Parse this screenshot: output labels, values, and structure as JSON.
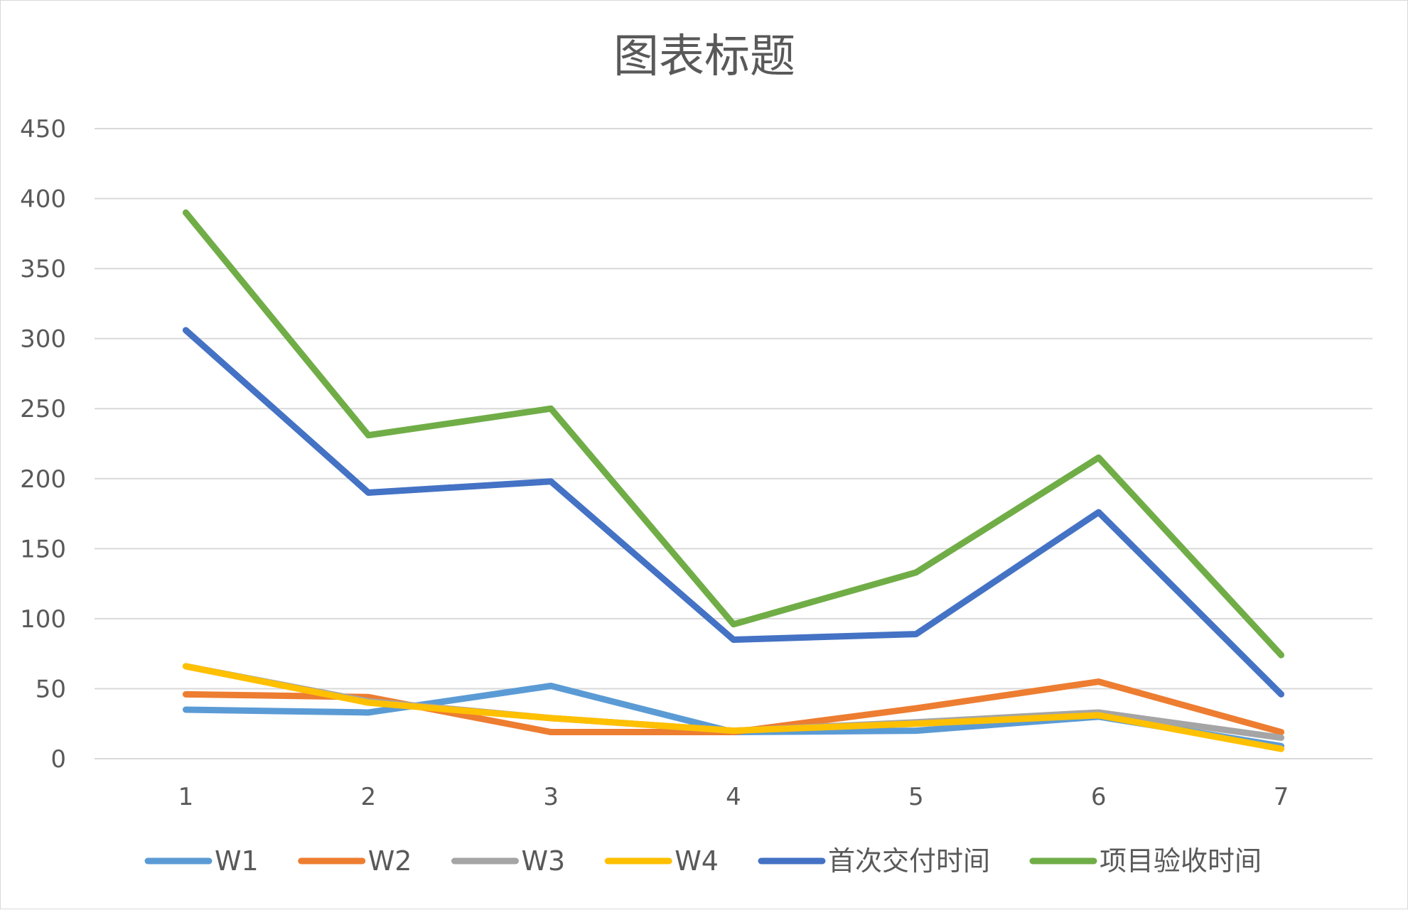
{
  "chart_data": {
    "type": "line",
    "title": "图表标题",
    "xlabel": "",
    "ylabel": "",
    "categories": [
      "1",
      "2",
      "3",
      "4",
      "5",
      "6",
      "7"
    ],
    "ylim": [
      0,
      450
    ],
    "yticks": [
      "0",
      "50",
      "100",
      "150",
      "200",
      "250",
      "300",
      "350",
      "400",
      "450"
    ],
    "grid": true,
    "legend_position": "bottom",
    "series": [
      {
        "name": "W1",
        "color": "#5B9BD5",
        "values": [
          35,
          33,
          52,
          19,
          20,
          30,
          9
        ]
      },
      {
        "name": "W2",
        "color": "#ED7D31",
        "values": [
          46,
          44,
          19,
          19,
          36,
          55,
          19
        ]
      },
      {
        "name": "W3",
        "color": "#A5A5A5",
        "values": [
          66,
          41,
          29,
          20,
          26,
          33,
          15
        ]
      },
      {
        "name": "W4",
        "color": "#FFC000",
        "values": [
          66,
          40,
          29,
          20,
          25,
          31,
          7
        ]
      },
      {
        "name": "首次交付时间",
        "color": "#4472C4",
        "values": [
          306,
          190,
          198,
          85,
          89,
          176,
          46
        ]
      },
      {
        "name": "项目验收时间",
        "color": "#70AD47",
        "values": [
          390,
          231,
          250,
          96,
          133,
          215,
          74
        ]
      }
    ]
  }
}
